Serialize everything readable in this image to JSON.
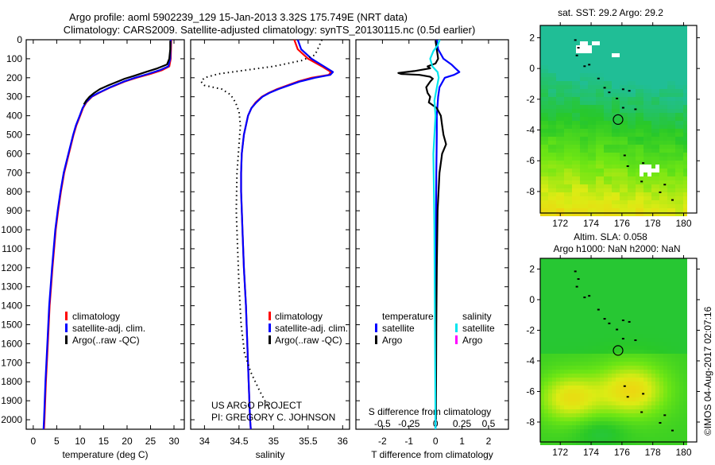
{
  "header": {
    "title1": "Argo profile: aoml 5902239_129 15-Jan-2013 3.32S 175.749E (NRT data)",
    "title2": "Climatology: CARS2009. Satellite-adjusted climatology: synTS_20130115.nc (0.5d earlier)"
  },
  "credits": {
    "project": "US ARGO PROJECT",
    "pi": "PI: GREGORY C. JOHNSON",
    "stamp": "©IMOS 04-Aug-2017 02:07:16"
  },
  "legend": {
    "climatology": "climatology",
    "satellite_adj": "satellite-adj. clim.",
    "argo": "Argo(..raw -QC)",
    "diff_temperature": "temperature",
    "diff_salinity": "salinity",
    "satellite": "satellite",
    "argo_short": "Argo"
  },
  "colors": {
    "climatology": "#ff0000",
    "satellite": "#0000ff",
    "argo": "#000000",
    "sal_satellite": "#00e5ee",
    "sal_argo": "#ff00ff"
  },
  "chart_data": [
    {
      "type": "line",
      "id": "temperature",
      "xlabel": "temperature (deg C)",
      "ylabel": "",
      "xlim": [
        -1.5,
        32.2
      ],
      "ylim": [
        2050,
        0
      ],
      "xticks": [
        0,
        5,
        10,
        15,
        20,
        25,
        30
      ],
      "yticks": [
        0,
        100,
        200,
        300,
        400,
        500,
        600,
        700,
        800,
        900,
        1000,
        1100,
        1200,
        1300,
        1400,
        1500,
        1600,
        1700,
        1800,
        1900,
        2000
      ],
      "series": [
        {
          "name": "climatology",
          "color": "#ff0000",
          "depth": [
            0,
            100,
            140,
            160,
            180,
            200,
            220,
            250,
            280,
            300,
            330,
            360,
            400,
            450,
            500,
            600,
            700,
            800,
            900,
            1000,
            1200,
            1400,
            1600,
            1800,
            2000,
            2050
          ],
          "values": [
            29.4,
            29.3,
            29.0,
            27.5,
            25.0,
            22.0,
            19.5,
            16.5,
            14.0,
            12.5,
            11.3,
            10.6,
            10.0,
            9.2,
            8.6,
            7.6,
            6.6,
            5.9,
            5.3,
            4.8,
            4.1,
            3.5,
            3.1,
            2.7,
            2.4,
            2.3
          ]
        },
        {
          "name": "satellite-adj. clim.",
          "color": "#0000ff",
          "depth": [
            0,
            100,
            140,
            160,
            180,
            200,
            220,
            250,
            280,
            300,
            330,
            360,
            400,
            450,
            500,
            600,
            700,
            800,
            900,
            1000,
            1200,
            1400,
            1600,
            1800,
            2000,
            2050
          ],
          "values": [
            29.3,
            29.2,
            28.8,
            27.0,
            24.5,
            21.7,
            19.3,
            16.4,
            13.9,
            12.4,
            11.2,
            10.5,
            9.9,
            9.1,
            8.5,
            7.5,
            6.5,
            5.8,
            5.2,
            4.7,
            4.0,
            3.4,
            3.0,
            2.6,
            2.3,
            2.2
          ]
        },
        {
          "name": "Argo(..raw -QC)",
          "color": "#000000",
          "depth": [
            5,
            50,
            100,
            130,
            150,
            170,
            190,
            205,
            220,
            240,
            260,
            280,
            300,
            320,
            340
          ],
          "values": [
            29.2,
            29.2,
            29.0,
            28.5,
            26.5,
            24.0,
            21.5,
            19.5,
            18.0,
            16.0,
            14.2,
            13.0,
            12.0,
            11.3,
            10.8
          ]
        }
      ]
    },
    {
      "type": "line",
      "id": "salinity",
      "xlabel": "salinity",
      "ylabel": "",
      "xlim": [
        33.8,
        36.1
      ],
      "ylim": [
        2050,
        0
      ],
      "xticks": [
        34,
        34.5,
        35,
        35.5,
        36
      ],
      "series": [
        {
          "name": "climatology",
          "color": "#ff0000",
          "depth": [
            0,
            50,
            100,
            140,
            170,
            185,
            200,
            220,
            240,
            260,
            280,
            300,
            330,
            360,
            400,
            500,
            600,
            700,
            800,
            1000,
            1200,
            1400,
            1600,
            1800,
            2000,
            2050
          ],
          "values": [
            35.3,
            35.35,
            35.5,
            35.7,
            35.83,
            35.8,
            35.55,
            35.35,
            35.2,
            35.05,
            34.93,
            34.83,
            34.74,
            34.68,
            34.63,
            34.57,
            34.54,
            34.53,
            34.53,
            34.55,
            34.57,
            34.6,
            34.62,
            34.64,
            34.66,
            34.67
          ]
        },
        {
          "name": "satellite-adj. clim.",
          "color": "#0000ff",
          "depth": [
            0,
            50,
            100,
            140,
            170,
            185,
            200,
            220,
            240,
            260,
            280,
            300,
            330,
            360,
            400,
            500,
            600,
            700,
            800,
            1000,
            1200,
            1400,
            1600,
            1800,
            2000,
            2050
          ],
          "values": [
            35.35,
            35.4,
            35.55,
            35.73,
            35.86,
            35.82,
            35.6,
            35.38,
            35.22,
            35.07,
            34.94,
            34.84,
            34.75,
            34.68,
            34.63,
            34.57,
            34.54,
            34.53,
            34.53,
            34.55,
            34.57,
            34.6,
            34.62,
            34.64,
            34.66,
            34.67
          ]
        },
        {
          "name": "Argo(..raw -QC)",
          "color": "#000000",
          "dotted": true,
          "depth": [
            0,
            40,
            80,
            110,
            140,
            160,
            180,
            200,
            220,
            240,
            260,
            290,
            330,
            380,
            450,
            550,
            700,
            900,
            1100,
            1300,
            1500,
            1650,
            1750,
            1850,
            1950
          ],
          "values": [
            35.7,
            35.65,
            35.6,
            35.4,
            35.0,
            34.6,
            34.2,
            34.0,
            33.95,
            34.0,
            34.25,
            34.38,
            34.45,
            34.5,
            34.52,
            34.5,
            34.47,
            34.46,
            34.48,
            34.5,
            34.53,
            34.58,
            34.67,
            34.8,
            34.95
          ]
        }
      ]
    },
    {
      "type": "line",
      "id": "difference",
      "xlabel": "T difference from climatology",
      "x2label": "S difference from climatology",
      "xlim": [
        -3,
        2.75
      ],
      "ylim": [
        2050,
        0
      ],
      "xticks": [
        -2,
        -1,
        0,
        1,
        2
      ],
      "x2ticks": [
        -0.5,
        -0.25,
        0,
        0.25,
        0.5
      ],
      "x2scale": 4,
      "series": [
        {
          "name": "temperature satellite",
          "color": "#0000ff",
          "depth": [
            0,
            50,
            100,
            130,
            150,
            170,
            185,
            200,
            250,
            300,
            400,
            500,
            700,
            1000,
            1500,
            2000,
            2050
          ],
          "values": [
            0.05,
            0.1,
            0.3,
            0.6,
            0.75,
            0.9,
            0.7,
            0.35,
            0.15,
            0.1,
            0.05,
            0.05,
            0.03,
            0.02,
            0.01,
            0.0,
            0.0
          ]
        },
        {
          "name": "temperature Argo",
          "color": "#000000",
          "depth": [
            5,
            50,
            100,
            125,
            140,
            150,
            165,
            175,
            180,
            185,
            195,
            205,
            220,
            250,
            280,
            300,
            330,
            360,
            400,
            450,
            500,
            550,
            600,
            700,
            900,
            1200,
            1500,
            1900,
            2000
          ],
          "values": [
            0.0,
            0.05,
            0.1,
            0.0,
            -0.3,
            -0.2,
            -0.8,
            -1.4,
            -1.3,
            -0.6,
            -0.2,
            -0.1,
            -0.2,
            -0.35,
            -0.3,
            -0.2,
            -0.25,
            0.05,
            0.2,
            0.25,
            0.3,
            0.4,
            0.25,
            0.15,
            0.08,
            0.05,
            0.03,
            0.02,
            0.02
          ]
        },
        {
          "name": "salinity satellite",
          "color": "#00e5ee",
          "depth": [
            0,
            30,
            60,
            100,
            140,
            170,
            200,
            260,
            320,
            400,
            600,
            800,
            1000,
            1500,
            2000,
            2050
          ],
          "values": [
            0.04,
            0.02,
            -0.02,
            -0.05,
            -0.03,
            0.02,
            0.03,
            0.01,
            -0.01,
            0.0,
            -0.02,
            -0.015,
            -0.01,
            -0.005,
            0.0,
            0.0
          ]
        },
        {
          "name": "salinity Argo",
          "color": "#ff00ff",
          "depth": [],
          "values": []
        }
      ]
    },
    {
      "type": "heatmap",
      "id": "sst-map",
      "title": "sat. SST: 29.2  Argo: 29.2",
      "xlim": [
        170.7,
        180.85
      ],
      "ylim": [
        -9.4,
        2.8
      ],
      "xticks": [
        172,
        174,
        176,
        178,
        180
      ],
      "yticks": [
        2,
        0,
        -2,
        -4,
        -6,
        -8
      ],
      "profile_location": {
        "lon": 175.749,
        "lat": -3.32
      }
    },
    {
      "type": "heatmap",
      "id": "sla-map",
      "title": "Altim. SLA: 0.058",
      "subtitle": "Argo h1000: NaN h2000: NaN",
      "xlim": [
        170.7,
        180.85
      ],
      "ylim": [
        -9.3,
        2.7
      ],
      "xticks": [
        172,
        174,
        176,
        178,
        180
      ],
      "yticks": [
        2,
        0,
        -2,
        -4,
        -6,
        -8
      ],
      "profile_location": {
        "lon": 175.749,
        "lat": -3.32
      }
    }
  ]
}
